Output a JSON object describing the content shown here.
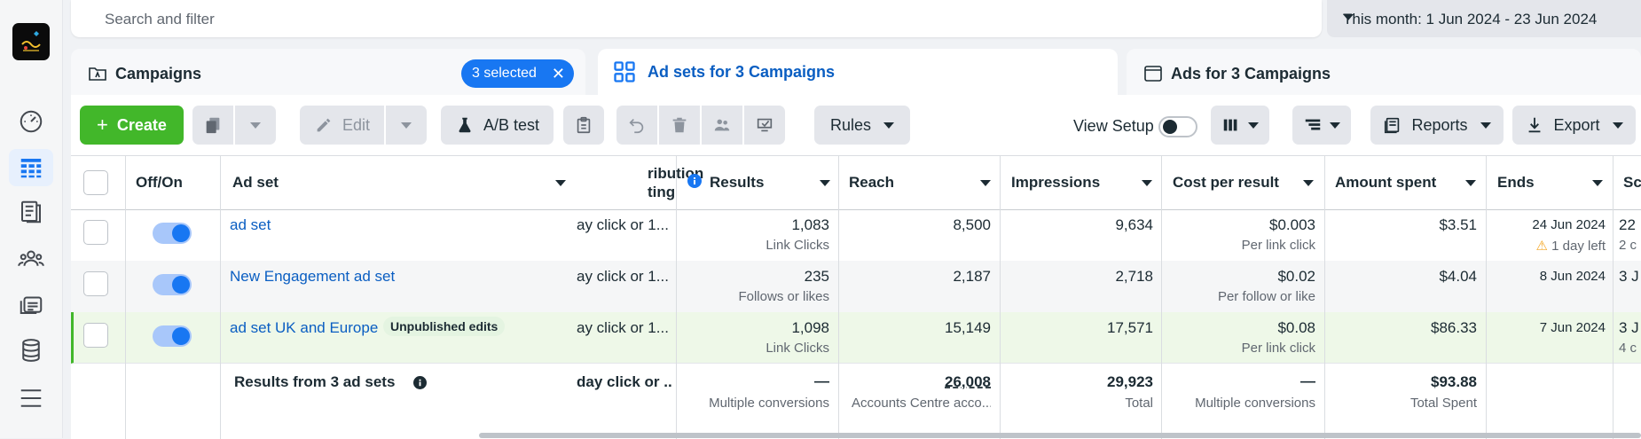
{
  "search": {
    "placeholder": "Search and filter"
  },
  "date_range": "This month: 1 Jun 2024 - 23 Jun 2024",
  "tabs": {
    "campaigns": "Campaigns",
    "selected": "3 selected",
    "adsets": "Ad sets for 3 Campaigns",
    "ads": "Ads for 3 Campaigns"
  },
  "toolbar": {
    "create": "Create",
    "edit": "Edit",
    "ab_test": "A/B test",
    "rules": "Rules",
    "view_setup": "View Setup",
    "reports": "Reports",
    "export": "Export"
  },
  "columns": {
    "off_on": "Off/On",
    "ad_set": "Ad set",
    "attribution_1": "ribution",
    "attribution_2": "ting",
    "results": "Results",
    "reach": "Reach",
    "impressions": "Impressions",
    "cost_per_result": "Cost per result",
    "amount_spent": "Amount spent",
    "ends": "Ends",
    "next": "Sc"
  },
  "rows": [
    {
      "name": "ad set",
      "attribution": "ay click or 1...",
      "results": "1,083",
      "results_sub": "Link Clicks",
      "reach": "8,500",
      "impressions": "9,634",
      "cpr": "$0.003",
      "cpr_sub": "Per link click",
      "spent": "$3.51",
      "ends": "24 Jun 2024",
      "ends_sub": "1 day left",
      "next": "22",
      "next_sub": "2 c",
      "on": true
    },
    {
      "name": "New Engagement ad set",
      "attribution": "ay click or 1...",
      "results": "235",
      "results_sub": "Follows or likes",
      "reach": "2,187",
      "impressions": "2,718",
      "cpr": "$0.02",
      "cpr_sub": "Per follow or like",
      "spent": "$4.04",
      "ends": "8 Jun 2024",
      "ends_sub": "",
      "next": "3 J",
      "next_sub": "",
      "on": true
    },
    {
      "name": "ad set UK and Europe",
      "badge": "Unpublished edits",
      "attribution": "ay click or 1...",
      "results": "1,098",
      "results_sub": "Link Clicks",
      "reach": "15,149",
      "impressions": "17,571",
      "cpr": "$0.08",
      "cpr_sub": "Per link click",
      "spent": "$86.33",
      "ends": "7 Jun 2024",
      "ends_sub": "",
      "next": "3 J",
      "next_sub": "4 c",
      "on": true
    }
  ],
  "summary": {
    "label": "Results from 3 ad sets",
    "attribution": "day click or ...",
    "results": "—",
    "results_sub": "Multiple conversions",
    "reach": "26,008",
    "reach_sub": "Accounts Centre acco...",
    "impressions": "29,923",
    "impressions_sub": "Total",
    "cpr": "—",
    "cpr_sub": "Multiple conversions",
    "spent": "$93.88",
    "spent_sub": "Total Spent"
  },
  "colors": {
    "accent": "#1877f2",
    "create_green": "#42b72a",
    "link": "#0a5ec2",
    "highlight_row": "#eef8e8"
  },
  "icons": [
    "dashboard-icon",
    "table-icon",
    "pages-icon",
    "audience-icon",
    "media-icon",
    "billing-icon",
    "menu-icon",
    "folder-icon",
    "grid-icon",
    "ads-icon",
    "duplicate-icon",
    "pencil-icon",
    "flask-icon",
    "clipboard-icon",
    "undo-icon",
    "trash-icon",
    "people-icon",
    "preview-icon",
    "columns-icon",
    "breakdown-icon",
    "reports-icon",
    "download-icon",
    "info-icon",
    "warning-icon"
  ]
}
